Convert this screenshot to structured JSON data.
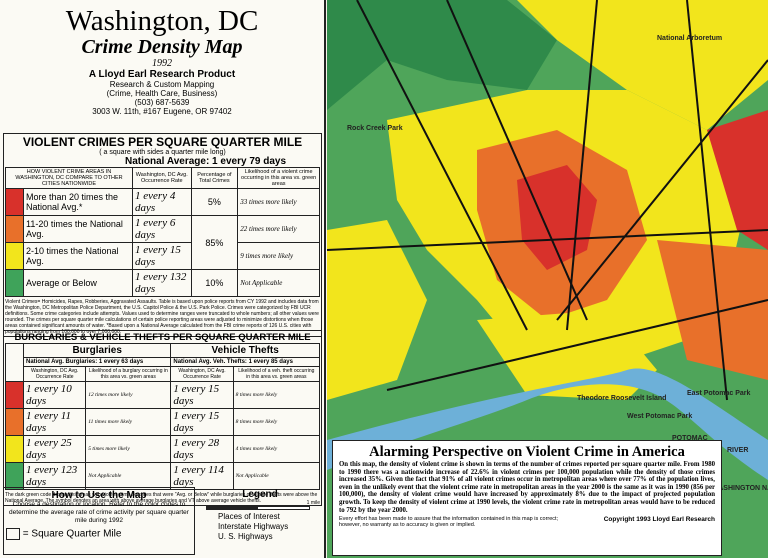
{
  "header": {
    "title": "Washington, DC",
    "subtitle": "Crime Density Map",
    "year": "1992",
    "producer": "A Lloyd Earl Research Product",
    "lines": [
      "Research & Custom Mapping",
      "(Crime, Health Care, Business)",
      "(503) 687-5639",
      "3003 W. 11th, #167  Eugene, OR  97402"
    ]
  },
  "violent": {
    "title": "VIOLENT CRIMES PER SQUARE QUARTER MILE",
    "subtitle": "( a square with sides a quarter mile long)",
    "national": "National Average: 1 every 79 days",
    "headers": [
      "HOW VIOLENT CRIME AREAS IN WASHINGTON, DC COMPARE TO OTHER CITIES NATIONWIDE",
      "Washington, DC Avg. Occurrence Rate",
      "Percentage of Total Crimes",
      "Likelihood of a violent crime occurring in this area vs. green areas"
    ],
    "rows": [
      {
        "color": "#d8312b",
        "label": "More than 20 times the National Avg.*",
        "rate": "1 every 4 days",
        "pct": "5%",
        "likelihood": "33 times more likely"
      },
      {
        "color": "#e8702a",
        "label": "11-20 times the National Avg.",
        "rate": "1 every 6 days",
        "pct": "85%",
        "likelihood": "22 times more likely"
      },
      {
        "color": "#f2e51c",
        "label": "2-10 times the National Avg.",
        "rate": "1 every 15 days",
        "likelihood": "9 times more likely"
      },
      {
        "color": "#3fa35a",
        "label": "Average or Below",
        "rate": "1 every 132 days",
        "pct": "10%",
        "likelihood": "Not Applicable"
      }
    ],
    "note": "Violent Crimes= Homicides, Rapes, Robberies, Aggravated Assaults. Table is based upon police reports from CY 1992 and includes data from the Washington, DC Metropolitan Police Department, the U.S. Capitol Police & the U.S. Park Police. Crimes were categorized by FBI UCR definitions. Some crime categories include attempts. Values used to determine ranges were truncated to whole numbers; all other values were rounded. The crimes per square quarter mile calculations of certain police reporting areas were adjusted to minimize distortions when those areas contained significant amounts of water. *Based upon a National Average calculated from the FBI crime reports of 126 U.S. cities with populations ranging from 100,000 to over 7,000,000."
  },
  "property": {
    "title": "BURGLARIES & VEHICLE THEFTS PER SQUARE QUARTER MILE",
    "groups": [
      "Burglaries",
      "Vehicle Thefts"
    ],
    "nationals": [
      "National Avg. Burglaries: 1 every 63 days",
      "National Avg. Veh. Thefts: 1 every 85 days"
    ],
    "headers": [
      "Washington, DC Avg. Occurrence Rate",
      "Likelihood of a burglary occurring in this area vs. green areas",
      "Washington, DC Avg. Occurrence Rate",
      "Likelihood of a veh. theft occurring in this area vs. green areas"
    ],
    "rows": [
      {
        "color": "#d8312b",
        "cells": [
          "1 every 10 days",
          "12 times more likely",
          "1 every 15 days",
          "8 times more likely"
        ]
      },
      {
        "color": "#e8702a",
        "cells": [
          "1 every 11 days",
          "11 times more likely",
          "1 every 15 days",
          "8 times more likely"
        ]
      },
      {
        "color": "#f2e51c",
        "cells": [
          "1 every 25 days",
          "5 times more likely",
          "1 every 28 days",
          "4 times more likely"
        ]
      },
      {
        "color": "#3fa35a",
        "cells": [
          "1 every 123 days",
          "Not Applicable",
          "1 every 114 days",
          "Not Applicable"
        ]
      }
    ],
    "note": "The dark green code designates areas with violent crime densities that were \"Avg. or Below\" while burglaries or vehicle thefts were above the National Average. The symbol denotes an area with above average burglaries and VT above average vehicle thefts."
  },
  "howto": {
    "title": "How to Use the Map",
    "text": "Choose a destination or location. Refer to the color codes to determine the average rate of crime activity per square quarter mile during 1992",
    "square": "= Square Quarter Mile"
  },
  "legend": {
    "title": "Legend",
    "scale": "1 mile",
    "items": [
      "Places of Interest",
      "Interstate Highways",
      "U. S. Highways"
    ]
  },
  "map": {
    "labels": [
      "Rock Creek Park",
      "National Arboretum",
      "East Potomac Park",
      "West Potomac Park",
      "POTOMAC",
      "RIVER",
      "WASHINGTON NATIONAL AIRPORT",
      "Theodore Roosevelt Island"
    ]
  },
  "article": {
    "title": "Alarming Perspective on Violent Crime in America",
    "body": "On this map, the density of violent crime is shown in terms of the number of crimes reported per square quarter mile. From 1980 to 1990 there was a nationwide increase of 22.6% in violent crimes per 100,000 population while the density of those crimes increased 35%. Given the fact that 91% of all violent crimes occur in metropolitan areas where over 77% of the population lives, even in the unlikely event that the violent crime rate in metropolitan areas in the year 2000 is the same as it was in 1990 (856 per 100,000), the density of violent crime would have increased by approximately 8% due to the impact of projected population growth. To keep the density of violent crime at 1990 levels, the violent crime rate in metropolitan areas would have to be reduced to 792 by the year 2000.",
    "disclaimer": "Every effort has been made to assure that the information contained in this map is correct; however, no warranty as to accuracy is given or implied.",
    "copyright": "Copyright 1993 Lloyd Earl Research"
  }
}
